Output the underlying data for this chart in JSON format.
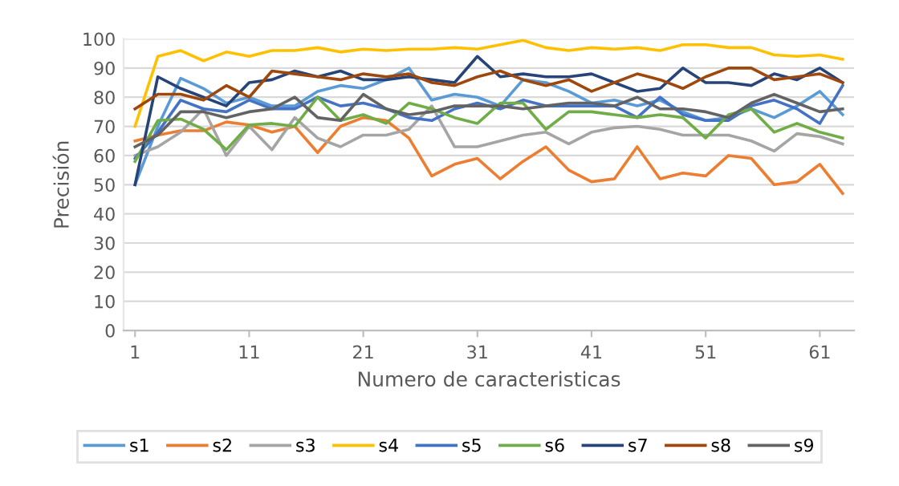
{
  "chart_data": {
    "type": "line",
    "xlabel": "Numero de caracteristicas",
    "ylabel": "Precisión",
    "x": [
      1,
      3,
      5,
      7,
      9,
      11,
      13,
      15,
      17,
      19,
      21,
      23,
      25,
      27,
      29,
      31,
      33,
      35,
      37,
      39,
      41,
      43,
      45,
      47,
      49,
      51,
      53,
      55,
      57,
      59,
      61,
      63
    ],
    "xlim": [
      0,
      64
    ],
    "xticks": [
      1,
      11,
      21,
      31,
      41,
      51,
      61
    ],
    "ylim": [
      0,
      100
    ],
    "yticks": [
      0,
      10,
      20,
      30,
      40,
      50,
      60,
      70,
      80,
      90,
      100
    ],
    "grid": "y",
    "legend": "bottom",
    "marker": "none",
    "line_style": "solid",
    "series": [
      {
        "name": "s1",
        "color": "#5b9bd5",
        "values": [
          50,
          70,
          86.5,
          83,
          78,
          80,
          77,
          77,
          82,
          84,
          83,
          86,
          90,
          79,
          81,
          80,
          77,
          86,
          85,
          82,
          78,
          79,
          77,
          79,
          75,
          72,
          73,
          76,
          73,
          77,
          82,
          74
        ]
      },
      {
        "name": "s2",
        "color": "#ed7d31",
        "values": [
          65,
          67,
          68.5,
          68.5,
          71.5,
          70.5,
          68,
          70,
          61,
          70,
          73,
          72,
          66,
          53,
          57,
          59,
          52,
          58,
          63,
          55,
          51,
          52,
          63,
          52,
          54,
          53,
          60,
          59,
          50,
          51,
          57,
          47
        ]
      },
      {
        "name": "s3",
        "color": "#a5a5a5",
        "values": [
          60,
          63,
          68,
          76,
          60,
          70,
          62,
          73,
          66,
          63,
          67,
          67,
          69,
          77,
          63,
          63,
          65,
          67,
          68,
          64,
          68,
          69.5,
          70,
          69,
          67,
          67,
          67,
          65,
          61.5,
          67.5,
          66.5,
          64
        ]
      },
      {
        "name": "s4",
        "color": "#ffc000",
        "values": [
          70,
          94,
          96,
          92.5,
          95.5,
          94,
          96,
          96,
          97,
          95.5,
          96.5,
          96,
          96.5,
          96.5,
          97,
          96.5,
          98,
          99.5,
          97,
          96,
          97,
          96.5,
          97,
          96,
          98,
          98,
          97,
          97,
          94.5,
          94,
          94.5,
          93
        ]
      },
      {
        "name": "s5",
        "color": "#4472c4",
        "values": [
          59,
          68,
          79,
          76,
          75,
          79,
          76,
          76,
          80,
          77,
          78,
          76,
          73,
          72,
          76,
          78,
          76,
          79,
          77,
          77,
          77,
          77,
          73,
          80,
          74,
          72,
          72,
          77,
          79,
          76,
          71,
          84
        ]
      },
      {
        "name": "s6",
        "color": "#70ad47",
        "values": [
          58,
          72,
          72.5,
          69,
          62,
          70.5,
          71,
          70,
          80,
          72,
          74,
          71,
          78,
          76,
          73,
          71,
          78,
          78,
          69,
          75,
          75,
          74,
          73,
          74,
          73,
          66,
          74,
          76,
          68,
          71,
          68,
          66
        ]
      },
      {
        "name": "s7",
        "color": "#264478",
        "values": [
          50,
          87,
          83,
          80,
          77,
          85,
          86,
          89,
          87,
          89,
          86,
          86,
          87,
          86,
          85,
          94,
          87,
          88,
          87,
          87,
          88,
          85,
          82,
          83,
          90,
          85,
          85,
          84,
          88,
          86,
          90,
          85
        ]
      },
      {
        "name": "s8",
        "color": "#9e480e",
        "values": [
          76,
          81,
          81,
          79,
          84,
          80,
          89,
          88,
          87,
          86,
          88,
          87,
          88,
          85,
          84,
          87,
          89,
          86,
          84,
          86,
          82,
          85,
          88,
          86,
          83,
          87,
          90,
          90,
          86,
          87,
          88,
          85
        ]
      },
      {
        "name": "s9",
        "color": "#636363",
        "values": [
          63,
          67,
          75,
          75,
          73,
          75,
          76,
          80,
          73,
          72,
          81,
          76,
          74,
          75,
          77,
          77,
          77,
          76,
          77,
          78,
          78,
          77,
          80,
          76,
          76,
          75,
          73,
          78,
          81,
          78,
          75,
          76
        ]
      }
    ]
  }
}
